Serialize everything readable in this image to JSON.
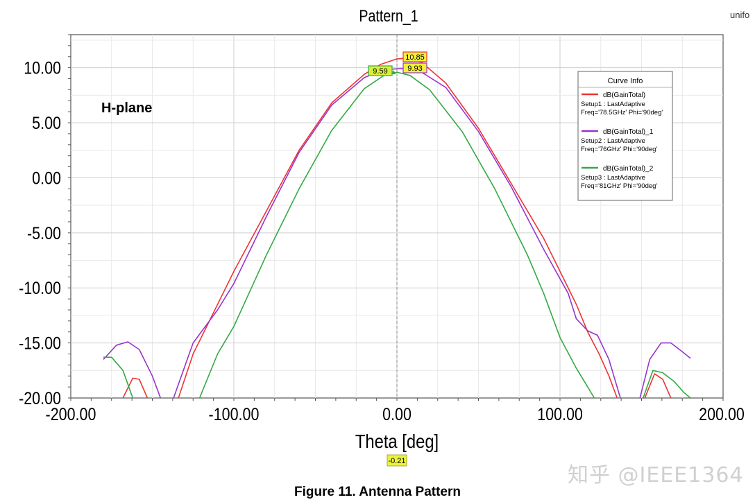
{
  "corner_text": "unifo",
  "caption": "Figure 11. Antenna Pattern",
  "watermark": "知乎 @IEEE1364",
  "chart_data": {
    "type": "line",
    "title": "Pattern_1",
    "xlabel": "Theta [deg]",
    "ylabel": "",
    "xlim": [
      -200,
      200
    ],
    "ylim": [
      -20,
      13
    ],
    "xticks": [
      -200,
      -100,
      0,
      100,
      200
    ],
    "xtick_labels": [
      "-200.00",
      "-100.00",
      "0.00",
      "100.00",
      "200.00"
    ],
    "yticks": [
      10,
      5,
      0,
      -5,
      -10,
      -15,
      -20
    ],
    "ytick_labels": [
      "10.00",
      "5.00",
      "0.00",
      "-5.00",
      "-10.00",
      "-15.00",
      "-20.00"
    ],
    "grid": true,
    "annotation": "H-plane",
    "cursor_x_label": "-0.21",
    "legend": {
      "title": "Curve Info",
      "placement": "top-right",
      "entries": [
        {
          "name": "dB(GainTotal)",
          "lines": [
            "Setup1 : LastAdaptive",
            "Freq='78.5GHz' Phi='90deg'"
          ],
          "color": "#ee3333"
        },
        {
          "name": "dB(GainTotal)_1",
          "lines": [
            "Setup2 : LastAdaptive",
            "Freq='76GHz' Phi='90deg'"
          ],
          "color": "#9933cc"
        },
        {
          "name": "dB(GainTotal)_2",
          "lines": [
            "Setup3 : LastAdaptive",
            "Freq='81GHz' Phi='90deg'"
          ],
          "color": "#33aa44"
        }
      ]
    },
    "markers": [
      {
        "label": "10.85",
        "x": 5,
        "y": 10.85,
        "series": 0
      },
      {
        "label": "9.93",
        "x": 5,
        "y": 9.93,
        "series": 1
      },
      {
        "label": "9.59",
        "x": -2,
        "y": 9.59,
        "series": 2
      }
    ],
    "series": [
      {
        "name": "dB(GainTotal)",
        "color": "#ee3333",
        "segments": [
          [
            [
              -168,
              -20
            ],
            [
              -162,
              -18.2
            ],
            [
              -158,
              -18.3
            ],
            [
              -153,
              -20
            ]
          ],
          [
            [
              -134,
              -20
            ],
            [
              -125,
              -16
            ],
            [
              -115,
              -13
            ],
            [
              -100,
              -8.5
            ],
            [
              -80,
              -3
            ],
            [
              -60,
              2.5
            ],
            [
              -40,
              6.8
            ],
            [
              -20,
              9.4
            ],
            [
              -10,
              10.3
            ],
            [
              0,
              10.8
            ],
            [
              5,
              10.85
            ],
            [
              15,
              10.5
            ],
            [
              30,
              8.6
            ],
            [
              50,
              4.5
            ],
            [
              70,
              -0.5
            ],
            [
              90,
              -5.5
            ],
            [
              100,
              -8.5
            ],
            [
              110,
              -11.5
            ],
            [
              117,
              -14
            ],
            [
              124,
              -16
            ],
            [
              130,
              -18
            ],
            [
              135,
              -20
            ]
          ],
          [
            [
              152,
              -20
            ],
            [
              158,
              -17.8
            ],
            [
              163,
              -18.3
            ],
            [
              168,
              -20
            ]
          ]
        ]
      },
      {
        "name": "dB(GainTotal)_1",
        "color": "#9933cc",
        "segments": [
          [
            [
              -180,
              -16.5
            ],
            [
              -172,
              -15.2
            ],
            [
              -165,
              -14.9
            ],
            [
              -158,
              -15.6
            ],
            [
              -150,
              -18
            ],
            [
              -145,
              -20
            ]
          ],
          [
            [
              -137,
              -20
            ],
            [
              -125,
              -15
            ],
            [
              -110,
              -12
            ],
            [
              -100,
              -9.6
            ],
            [
              -80,
              -3.5
            ],
            [
              -60,
              2.3
            ],
            [
              -40,
              6.6
            ],
            [
              -20,
              9.1
            ],
            [
              -8,
              9.8
            ],
            [
              0,
              9.9
            ],
            [
              5,
              9.93
            ],
            [
              15,
              9.6
            ],
            [
              30,
              8.2
            ],
            [
              50,
              4.2
            ],
            [
              70,
              -0.8
            ],
            [
              90,
              -6.5
            ],
            [
              105,
              -10.5
            ],
            [
              110,
              -12.8
            ],
            [
              117,
              -13.9
            ],
            [
              123,
              -14.3
            ],
            [
              130,
              -16.5
            ],
            [
              137,
              -20
            ]
          ],
          [
            [
              149,
              -20
            ],
            [
              155,
              -16.5
            ],
            [
              162,
              -15
            ],
            [
              168,
              -15
            ],
            [
              175,
              -15.8
            ],
            [
              180,
              -16.4
            ]
          ]
        ]
      },
      {
        "name": "dB(GainTotal)_2",
        "color": "#33aa44",
        "segments": [
          [
            [
              -180,
              -16.3
            ],
            [
              -175,
              -16.3
            ],
            [
              -168,
              -17.5
            ],
            [
              -162,
              -20
            ]
          ],
          [
            [
              -121,
              -20
            ],
            [
              -110,
              -16
            ],
            [
              -100,
              -13.5
            ],
            [
              -80,
              -7
            ],
            [
              -60,
              -1
            ],
            [
              -40,
              4.3
            ],
            [
              -20,
              8.1
            ],
            [
              -8,
              9.3
            ],
            [
              0,
              9.59
            ],
            [
              8,
              9.3
            ],
            [
              20,
              8.0
            ],
            [
              40,
              4.2
            ],
            [
              60,
              -1
            ],
            [
              80,
              -7
            ],
            [
              90,
              -10.5
            ],
            [
              100,
              -14.5
            ],
            [
              110,
              -17.3
            ],
            [
              117,
              -19
            ],
            [
              121,
              -20
            ]
          ],
          [
            [
              151,
              -20
            ],
            [
              157,
              -17.5
            ],
            [
              163,
              -17.7
            ],
            [
              170,
              -18.5
            ],
            [
              176,
              -19.5
            ],
            [
              180,
              -20
            ]
          ]
        ]
      }
    ]
  }
}
